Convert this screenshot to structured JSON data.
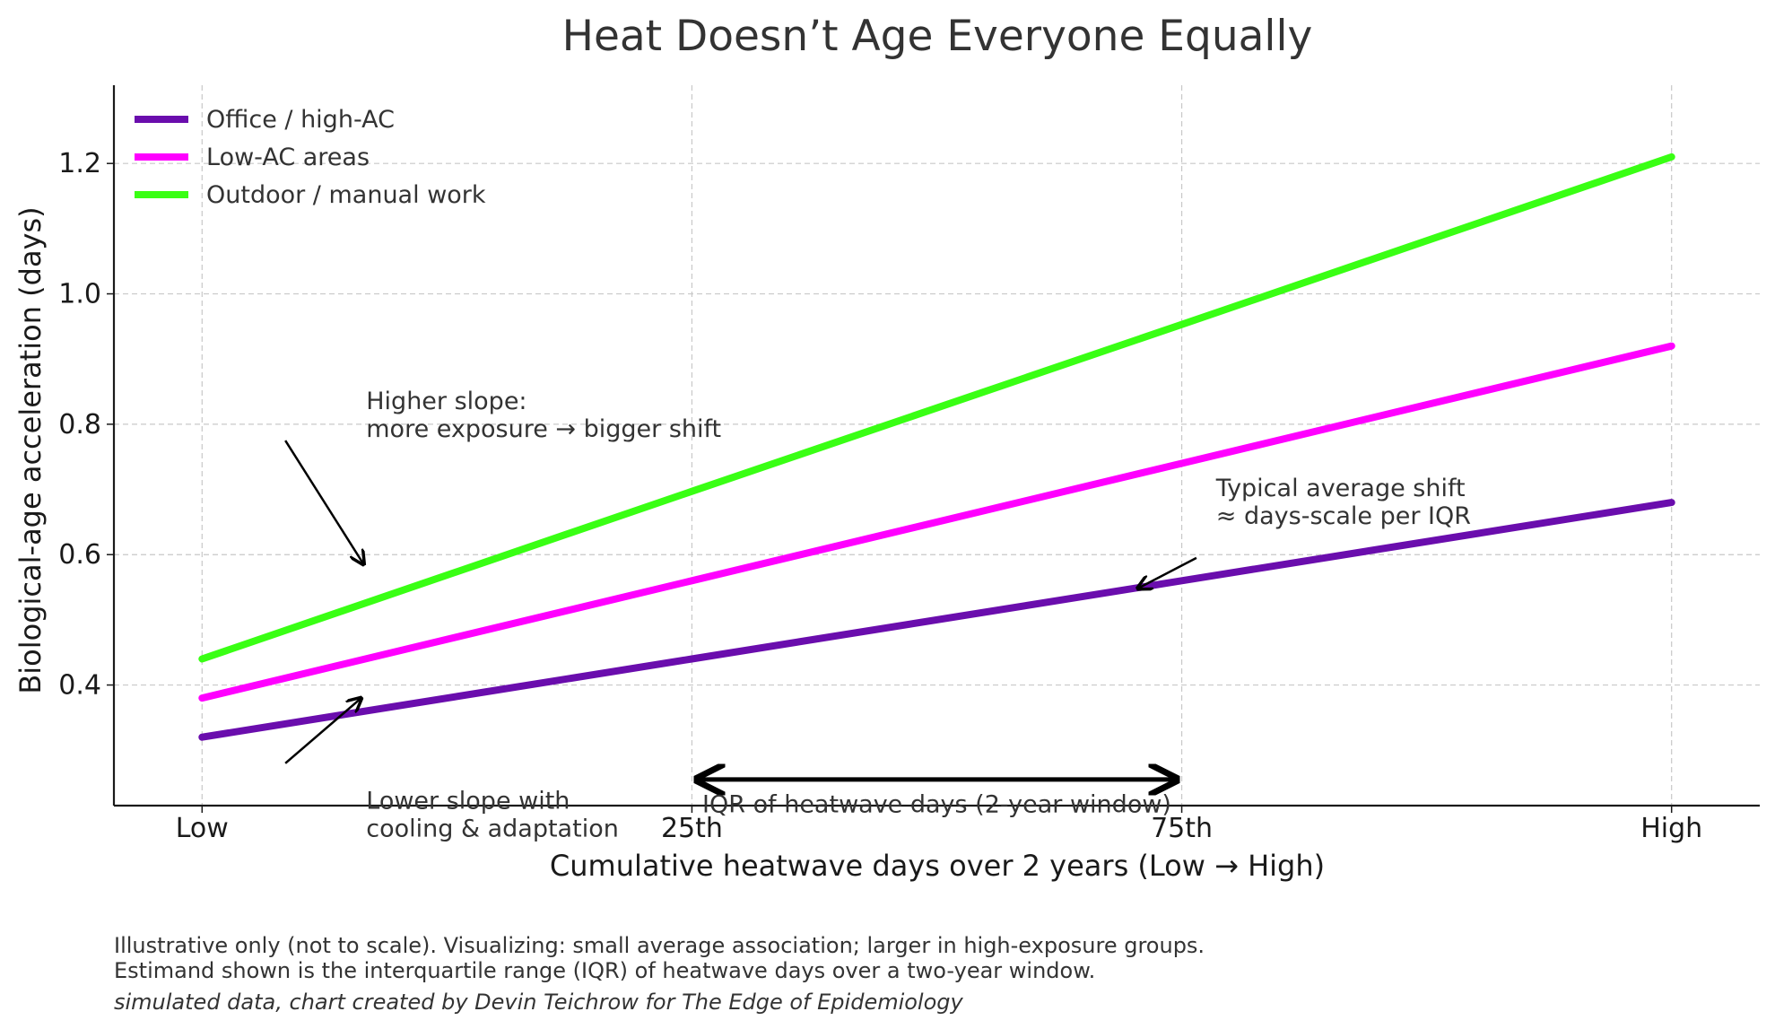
{
  "chart_data": {
    "type": "line",
    "title": "Heat Doesn’t Age Everyone Equally",
    "xlabel": "Cumulative heatwave days over 2 years (Low → High)",
    "ylabel": "Biological-age acceleration (days)",
    "x_ticks": [
      "Low",
      "25th",
      "75th",
      "High"
    ],
    "x": [
      0,
      1,
      2,
      3
    ],
    "xlim": [
      -0.18,
      3.18
    ],
    "ylim": [
      0.215,
      1.32
    ],
    "y_ticks": [
      0.4,
      0.6,
      0.8,
      1.0,
      1.2
    ],
    "y_tick_labels": [
      "0.4",
      "0.6",
      "0.8",
      "1.0",
      "1.2"
    ],
    "grid": true,
    "legend_position": "top-left",
    "series": [
      {
        "name": "Office / high-AC",
        "color": "#6a0dad",
        "values": [
          0.32,
          0.44,
          0.56,
          0.68
        ]
      },
      {
        "name": "Low-AC areas",
        "color": "#ff00ff",
        "values": [
          0.38,
          0.56,
          0.74,
          0.92
        ]
      },
      {
        "name": "Outdoor / manual work",
        "color": "#39ff14",
        "values": [
          0.44,
          0.697,
          0.953,
          1.21
        ]
      }
    ],
    "annotations": [
      {
        "id": "higher-slope",
        "lines": [
          "Higher slope:",
          "more exposure → bigger shift"
        ],
        "text_at": [
          0.335,
          0.823
        ],
        "arrow_from": [
          0.17,
          0.775
        ],
        "arrow_to": [
          0.33,
          0.585
        ]
      },
      {
        "id": "lower-slope",
        "lines": [
          "Lower slope with",
          "cooling & adaptation"
        ],
        "text_at": [
          0.335,
          0.21
        ],
        "arrow_from": [
          0.17,
          0.28
        ],
        "arrow_to": [
          0.325,
          0.38
        ]
      },
      {
        "id": "typical-shift",
        "lines": [
          "Typical average shift",
          "≈ days-scale per IQR"
        ],
        "text_at": [
          2.07,
          0.69
        ],
        "arrow_from": [
          2.03,
          0.595
        ],
        "arrow_to": [
          1.91,
          0.548
        ]
      },
      {
        "id": "iqr",
        "lines": [
          "IQR of heatwave days (2-year window)"
        ],
        "text_at": [
          1.5,
          0.205
        ],
        "arrow_from": [
          1.01,
          0.255
        ],
        "arrow_to": [
          1.99,
          0.255
        ],
        "double_headed": true
      }
    ]
  },
  "footnote": {
    "line1": "Illustrative only (not to scale). Visualizing: small average association; larger in high-exposure groups.",
    "line2": "Estimand shown is the interquartile range (IQR) of heatwave days over a two-year window.",
    "credit": "simulated data, chart created by Devin Teichrow for The Edge of Epidemiology"
  }
}
